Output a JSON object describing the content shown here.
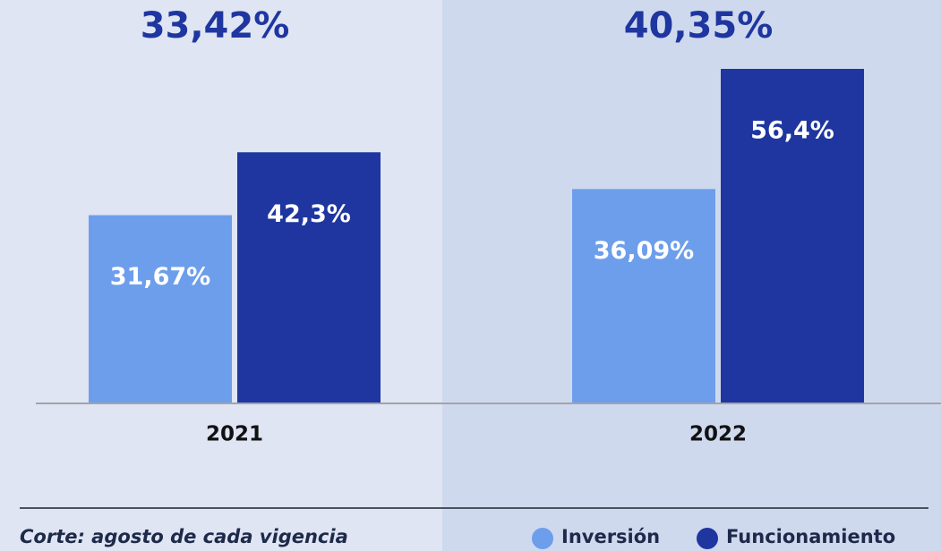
{
  "chart_data": {
    "type": "bar",
    "categories": [
      "2021",
      "2022"
    ],
    "totals": [
      33.42,
      40.35
    ],
    "total_labels": [
      "33,42%",
      "40,35%"
    ],
    "series": [
      {
        "name": "Inversión",
        "color": "#6d9eeb",
        "values": [
          31.67,
          36.09
        ],
        "value_labels": [
          "31,67%",
          "36,09%"
        ]
      },
      {
        "name": "Funcionamiento",
        "color": "#1f36a0",
        "values": [
          42.3,
          56.4
        ],
        "value_labels": [
          "42,3%",
          "56,4%"
        ]
      }
    ],
    "footnote": "Corte: agosto de cada vigencia",
    "legend": "bottom-right"
  }
}
